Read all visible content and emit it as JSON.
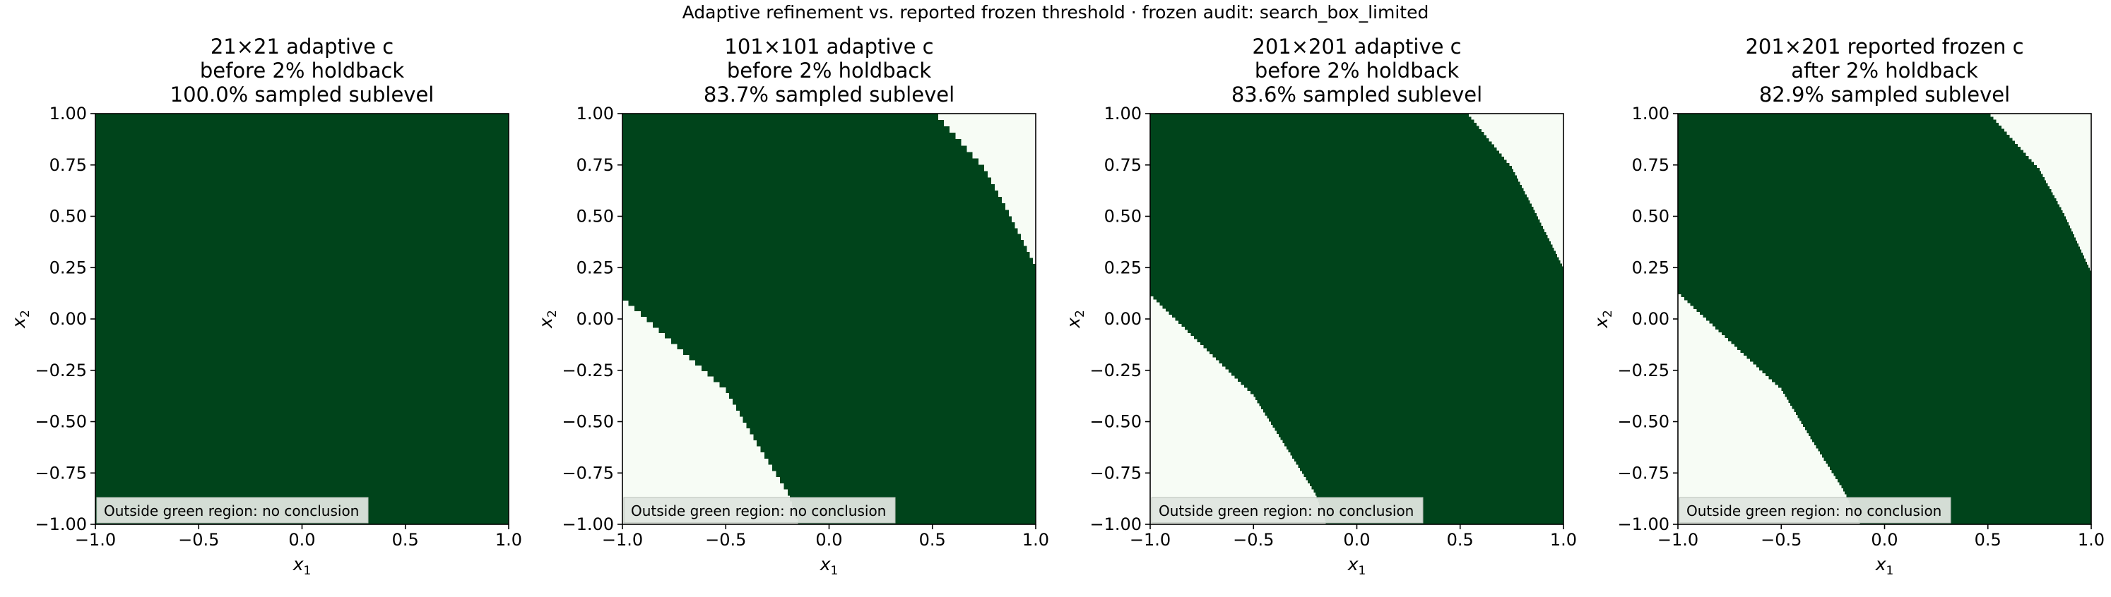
{
  "figure": {
    "suptitle": "Adaptive refinement vs. reported frozen threshold · frozen audit: search_box_limited"
  },
  "colors": {
    "inside": "#00441b",
    "outside": "#f7fcf5",
    "axis": "#000000",
    "note_bg": "#dfe6df"
  },
  "chart_data": [
    {
      "type": "heatmap",
      "title": [
        "21×21 adaptive c",
        "before 2% holdback",
        "100.0% sampled sublevel"
      ],
      "xlabel": "x1",
      "ylabel": "x2",
      "xlim": [
        -1.0,
        1.0
      ],
      "ylim": [
        -1.0,
        1.0
      ],
      "grid_n": 21,
      "xticks": [
        "−1.0",
        "−0.5",
        "0.0",
        "0.5",
        "1.0"
      ],
      "yticks": [
        "1.00",
        "0.75",
        "0.50",
        "0.25",
        "0.00",
        "−0.25",
        "−0.50",
        "−0.75",
        "−1.00"
      ],
      "note": "Outside green region: no conclusion",
      "sampled_sublevel_pct": 100.0,
      "outside_regions": []
    },
    {
      "type": "heatmap",
      "title": [
        "101×101 adaptive c",
        "before 2% holdback",
        "83.7% sampled sublevel"
      ],
      "xlabel": "x1",
      "ylabel": "x2",
      "xlim": [
        -1.0,
        1.0
      ],
      "ylim": [
        -1.0,
        1.0
      ],
      "grid_n": 101,
      "xticks": [
        "−1.0",
        "−0.5",
        "0.0",
        "0.5",
        "1.0"
      ],
      "yticks": [
        "1.00",
        "0.75",
        "0.50",
        "0.25",
        "0.00",
        "−0.25",
        "−0.50",
        "−0.75",
        "−1.00"
      ],
      "note": "Outside green region: no conclusion",
      "sampled_sublevel_pct": 83.7,
      "outside_regions": [
        [
          [
            -1.0,
            0.09
          ],
          [
            -0.5,
            -0.36
          ],
          [
            -0.35,
            -0.62
          ],
          [
            -0.2,
            -0.86
          ],
          [
            -0.15,
            -1.0
          ],
          [
            -1.0,
            -1.0
          ]
        ],
        [
          [
            0.5,
            1.0
          ],
          [
            0.75,
            0.72
          ],
          [
            0.87,
            0.5
          ],
          [
            1.0,
            0.24
          ],
          [
            1.0,
            1.0
          ]
        ]
      ]
    },
    {
      "type": "heatmap",
      "title": [
        "201×201 adaptive c",
        "before 2% holdback",
        "83.6% sampled sublevel"
      ],
      "xlabel": "x1",
      "ylabel": "x2",
      "xlim": [
        -1.0,
        1.0
      ],
      "ylim": [
        -1.0,
        1.0
      ],
      "grid_n": 201,
      "xticks": [
        "−1.0",
        "−0.5",
        "0.0",
        "0.5",
        "1.0"
      ],
      "yticks": [
        "1.00",
        "0.75",
        "0.50",
        "0.25",
        "0.00",
        "−0.25",
        "−0.50",
        "−0.75",
        "−1.00"
      ],
      "note": "Outside green region: no conclusion",
      "sampled_sublevel_pct": 83.6,
      "outside_regions": [
        [
          [
            -1.0,
            0.11
          ],
          [
            -0.5,
            -0.38
          ],
          [
            -0.35,
            -0.62
          ],
          [
            -0.2,
            -0.86
          ],
          [
            -0.15,
            -1.0
          ],
          [
            -1.0,
            -1.0
          ]
        ],
        [
          [
            0.53,
            1.0
          ],
          [
            0.75,
            0.73
          ],
          [
            0.87,
            0.5
          ],
          [
            1.0,
            0.24
          ],
          [
            1.0,
            1.0
          ]
        ]
      ]
    },
    {
      "type": "heatmap",
      "title": [
        "201×201 reported frozen c",
        "after 2% holdback",
        "82.9% sampled sublevel"
      ],
      "xlabel": "x1",
      "ylabel": "x2",
      "xlim": [
        -1.0,
        1.0
      ],
      "ylim": [
        -1.0,
        1.0
      ],
      "grid_n": 201,
      "xticks": [
        "−1.0",
        "−0.5",
        "0.0",
        "0.5",
        "1.0"
      ],
      "yticks": [
        "1.00",
        "0.75",
        "0.50",
        "0.25",
        "0.00",
        "−0.25",
        "−0.50",
        "−0.75",
        "−1.00"
      ],
      "note": "Outside green region: no conclusion",
      "sampled_sublevel_pct": 82.9,
      "outside_regions": [
        [
          [
            -1.0,
            0.12
          ],
          [
            -0.5,
            -0.35
          ],
          [
            -0.35,
            -0.6
          ],
          [
            -0.2,
            -0.84
          ],
          [
            -0.12,
            -1.0
          ],
          [
            -1.0,
            -1.0
          ]
        ],
        [
          [
            0.5,
            1.0
          ],
          [
            0.75,
            0.72
          ],
          [
            0.87,
            0.5
          ],
          [
            1.0,
            0.22
          ],
          [
            1.0,
            1.0
          ]
        ]
      ]
    }
  ]
}
